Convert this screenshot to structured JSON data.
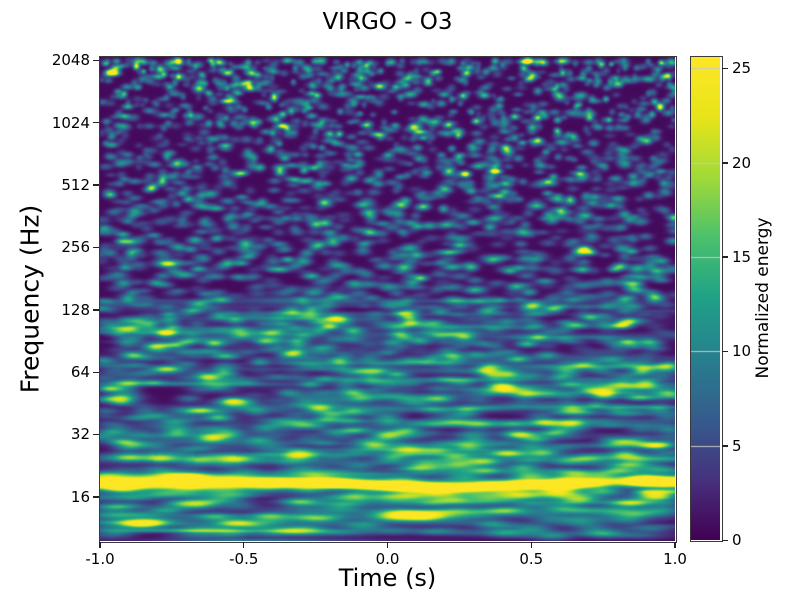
{
  "chart_data": {
    "type": "heatmap",
    "subtype": "spectrogram-q-transform",
    "title": "VIRGO - O3",
    "xlabel": "Time (s)",
    "ylabel": "Frequency (Hz)",
    "xlim": [
      -1.0,
      1.0
    ],
    "x_tick_values": [
      -1.0,
      -0.5,
      0.0,
      0.5,
      1.0
    ],
    "x_tick_labels": [
      "-1.0",
      "-0.5",
      "0.0",
      "0.5",
      "1.0"
    ],
    "yscale": "log2",
    "ylim_hz": [
      9.8,
      2120
    ],
    "y_tick_values": [
      16,
      32,
      64,
      128,
      256,
      512,
      1024,
      2048
    ],
    "y_tick_labels": [
      "16",
      "32",
      "64",
      "128",
      "256",
      "512",
      "1024",
      "2048"
    ],
    "colormap": "viridis",
    "colormap_anchors": [
      "#440154",
      "#46327e",
      "#365c8d",
      "#277f8e",
      "#1fa187",
      "#4ac16d",
      "#a0da39",
      "#e7e419",
      "#fde725"
    ],
    "colorbar": {
      "label": "Normalized energy",
      "vmin": 0,
      "vmax": 25.6,
      "tick_values": [
        0,
        5,
        10,
        15,
        20,
        25
      ],
      "tick_labels": [
        "0",
        "5",
        "10",
        "15",
        "20",
        "25"
      ]
    },
    "content": {
      "background_energy": 1,
      "noise_speckle": "teal transient blobs; density and fineness increase with frequency; typical energy 4-12",
      "low_frequency_texture": "wispy horizontal streaks below ~128 Hz, energy 2-6",
      "persistent_line": {
        "frequency_hz": 19,
        "energy_peak": 25,
        "time_extent": [
          -1.0,
          1.0
        ],
        "center_dip_hz": 18.1,
        "dips": [
          {
            "time_s": -0.09,
            "energy": 21
          },
          {
            "time_s": 0.8,
            "energy": 13
          }
        ]
      },
      "secondary_streak": {
        "frequency_hz": 23,
        "energy": 6,
        "time_extent": [
          -0.95,
          0.45
        ]
      },
      "under_line": {
        "frequency_hz": 17,
        "energy": 12,
        "time_extent": [
          0.87,
          1.0
        ]
      }
    },
    "render": {
      "seed": 20190401,
      "blob_count": 3400,
      "streak_count": 320
    }
  },
  "colors": {
    "figure_background": "#ffffff",
    "text": "#000000",
    "spine": "#3a3a3a",
    "colorbar_gridline": "#c8c8c8"
  }
}
